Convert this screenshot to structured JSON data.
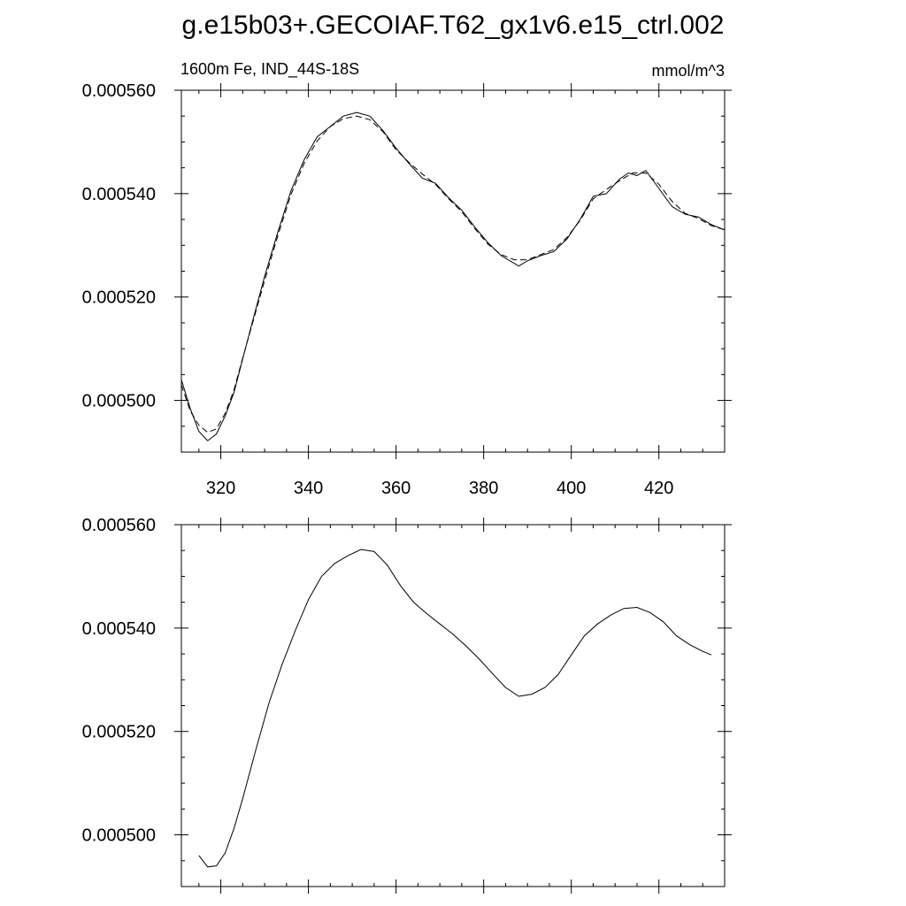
{
  "figure": {
    "title": "g.e15b03+.GECOIAF.T62_gx1v6.e15_ctrl.002"
  },
  "chart_data": [
    {
      "type": "line",
      "left_label": "1600m Fe, IND_44S-18S",
      "right_label": "mmol/m^3",
      "xlim": [
        311,
        435
      ],
      "ylim": [
        0.00049,
        0.00056
      ],
      "xticks": [
        320,
        340,
        360,
        380,
        400,
        420
      ],
      "xtick_labels": [
        "320",
        "340",
        "360",
        "380",
        "400",
        "420"
      ],
      "yticks": [
        0.0005,
        0.00052,
        0.00054,
        0.00056
      ],
      "ytick_labels": [
        "0.000500",
        "0.000520",
        "0.000540",
        "0.000560"
      ],
      "grid": false,
      "series": [
        {
          "style": "solid",
          "x": [
            311,
            313,
            315,
            317,
            319,
            321,
            323,
            325,
            327,
            330,
            333,
            336,
            339,
            342,
            345,
            348,
            351,
            354,
            357,
            360,
            363,
            366,
            369,
            372,
            375,
            378,
            381,
            384,
            387,
            388,
            390,
            393,
            396,
            399,
            402,
            405,
            408,
            411,
            413,
            415,
            417,
            420,
            423,
            426,
            429,
            432,
            435
          ],
          "y": [
            0.000504,
            0.0004985,
            0.000494,
            0.0004922,
            0.0004935,
            0.000497,
            0.0005015,
            0.000508,
            0.0005145,
            0.000524,
            0.0005325,
            0.0005405,
            0.0005465,
            0.000551,
            0.000553,
            0.000555,
            0.0005557,
            0.000555,
            0.0005522,
            0.0005488,
            0.0005458,
            0.000543,
            0.000542,
            0.0005392,
            0.0005368,
            0.0005335,
            0.0005305,
            0.000528,
            0.0005265,
            0.000526,
            0.000527,
            0.000528,
            0.0005288,
            0.0005312,
            0.000535,
            0.0005395,
            0.00054,
            0.0005428,
            0.000544,
            0.0005435,
            0.0005445,
            0.000541,
            0.0005375,
            0.000536,
            0.0005355,
            0.000534,
            0.000533
          ]
        },
        {
          "style": "dashed",
          "x": [
            311,
            313,
            315,
            317,
            319,
            321,
            323,
            325,
            327,
            330,
            333,
            336,
            339,
            342,
            345,
            348,
            351,
            354,
            357,
            360,
            363,
            366,
            369,
            372,
            375,
            378,
            381,
            384,
            387,
            390,
            393,
            396,
            399,
            402,
            405,
            408,
            411,
            414,
            417,
            420,
            423,
            426,
            429,
            432,
            435
          ],
          "y": [
            0.000503,
            0.000498,
            0.0004952,
            0.0004938,
            0.0004945,
            0.0004975,
            0.000502,
            0.0005082,
            0.0005142,
            0.0005232,
            0.0005318,
            0.0005398,
            0.0005458,
            0.0005502,
            0.000553,
            0.0005545,
            0.000555,
            0.0005543,
            0.000552,
            0.0005485,
            0.000546,
            0.0005438,
            0.0005418,
            0.000539,
            0.0005365,
            0.0005332,
            0.0005302,
            0.0005282,
            0.0005272,
            0.0005272,
            0.0005282,
            0.0005292,
            0.0005315,
            0.0005348,
            0.000539,
            0.0005408,
            0.0005425,
            0.000544,
            0.000544,
            0.0005418,
            0.0005385,
            0.0005362,
            0.0005352,
            0.0005338,
            0.000533
          ]
        }
      ]
    },
    {
      "type": "line",
      "xlim": [
        311,
        435
      ],
      "ylim": [
        0.00049,
        0.00056
      ],
      "xticks": [
        320,
        340,
        360,
        380,
        400,
        420
      ],
      "yticks": [
        0.0005,
        0.00052,
        0.00054,
        0.00056
      ],
      "ytick_labels": [
        "0.000500",
        "0.000520",
        "0.000540",
        "0.000560"
      ],
      "grid": false,
      "series": [
        {
          "style": "solid",
          "x": [
            315,
            317,
            319,
            321,
            323,
            325,
            328,
            331,
            334,
            337,
            340,
            343,
            346,
            349,
            352,
            355,
            358,
            361,
            364,
            367,
            370,
            373,
            376,
            379,
            382,
            385,
            388,
            391,
            394,
            397,
            400,
            403,
            406,
            409,
            412,
            415,
            418,
            421,
            424,
            427,
            430,
            432
          ],
          "y": [
            0.000496,
            0.0004938,
            0.000494,
            0.0004965,
            0.0005012,
            0.000507,
            0.0005165,
            0.0005255,
            0.000533,
            0.0005395,
            0.0005455,
            0.00055,
            0.0005525,
            0.000554,
            0.0005552,
            0.0005548,
            0.0005522,
            0.0005482,
            0.000545,
            0.0005428,
            0.0005408,
            0.0005388,
            0.0005365,
            0.000534,
            0.0005312,
            0.0005285,
            0.0005268,
            0.0005272,
            0.0005285,
            0.000531,
            0.0005348,
            0.0005385,
            0.0005408,
            0.0005425,
            0.0005438,
            0.000544,
            0.000543,
            0.0005412,
            0.0005385,
            0.0005368,
            0.0005355,
            0.0005348
          ]
        }
      ]
    }
  ]
}
